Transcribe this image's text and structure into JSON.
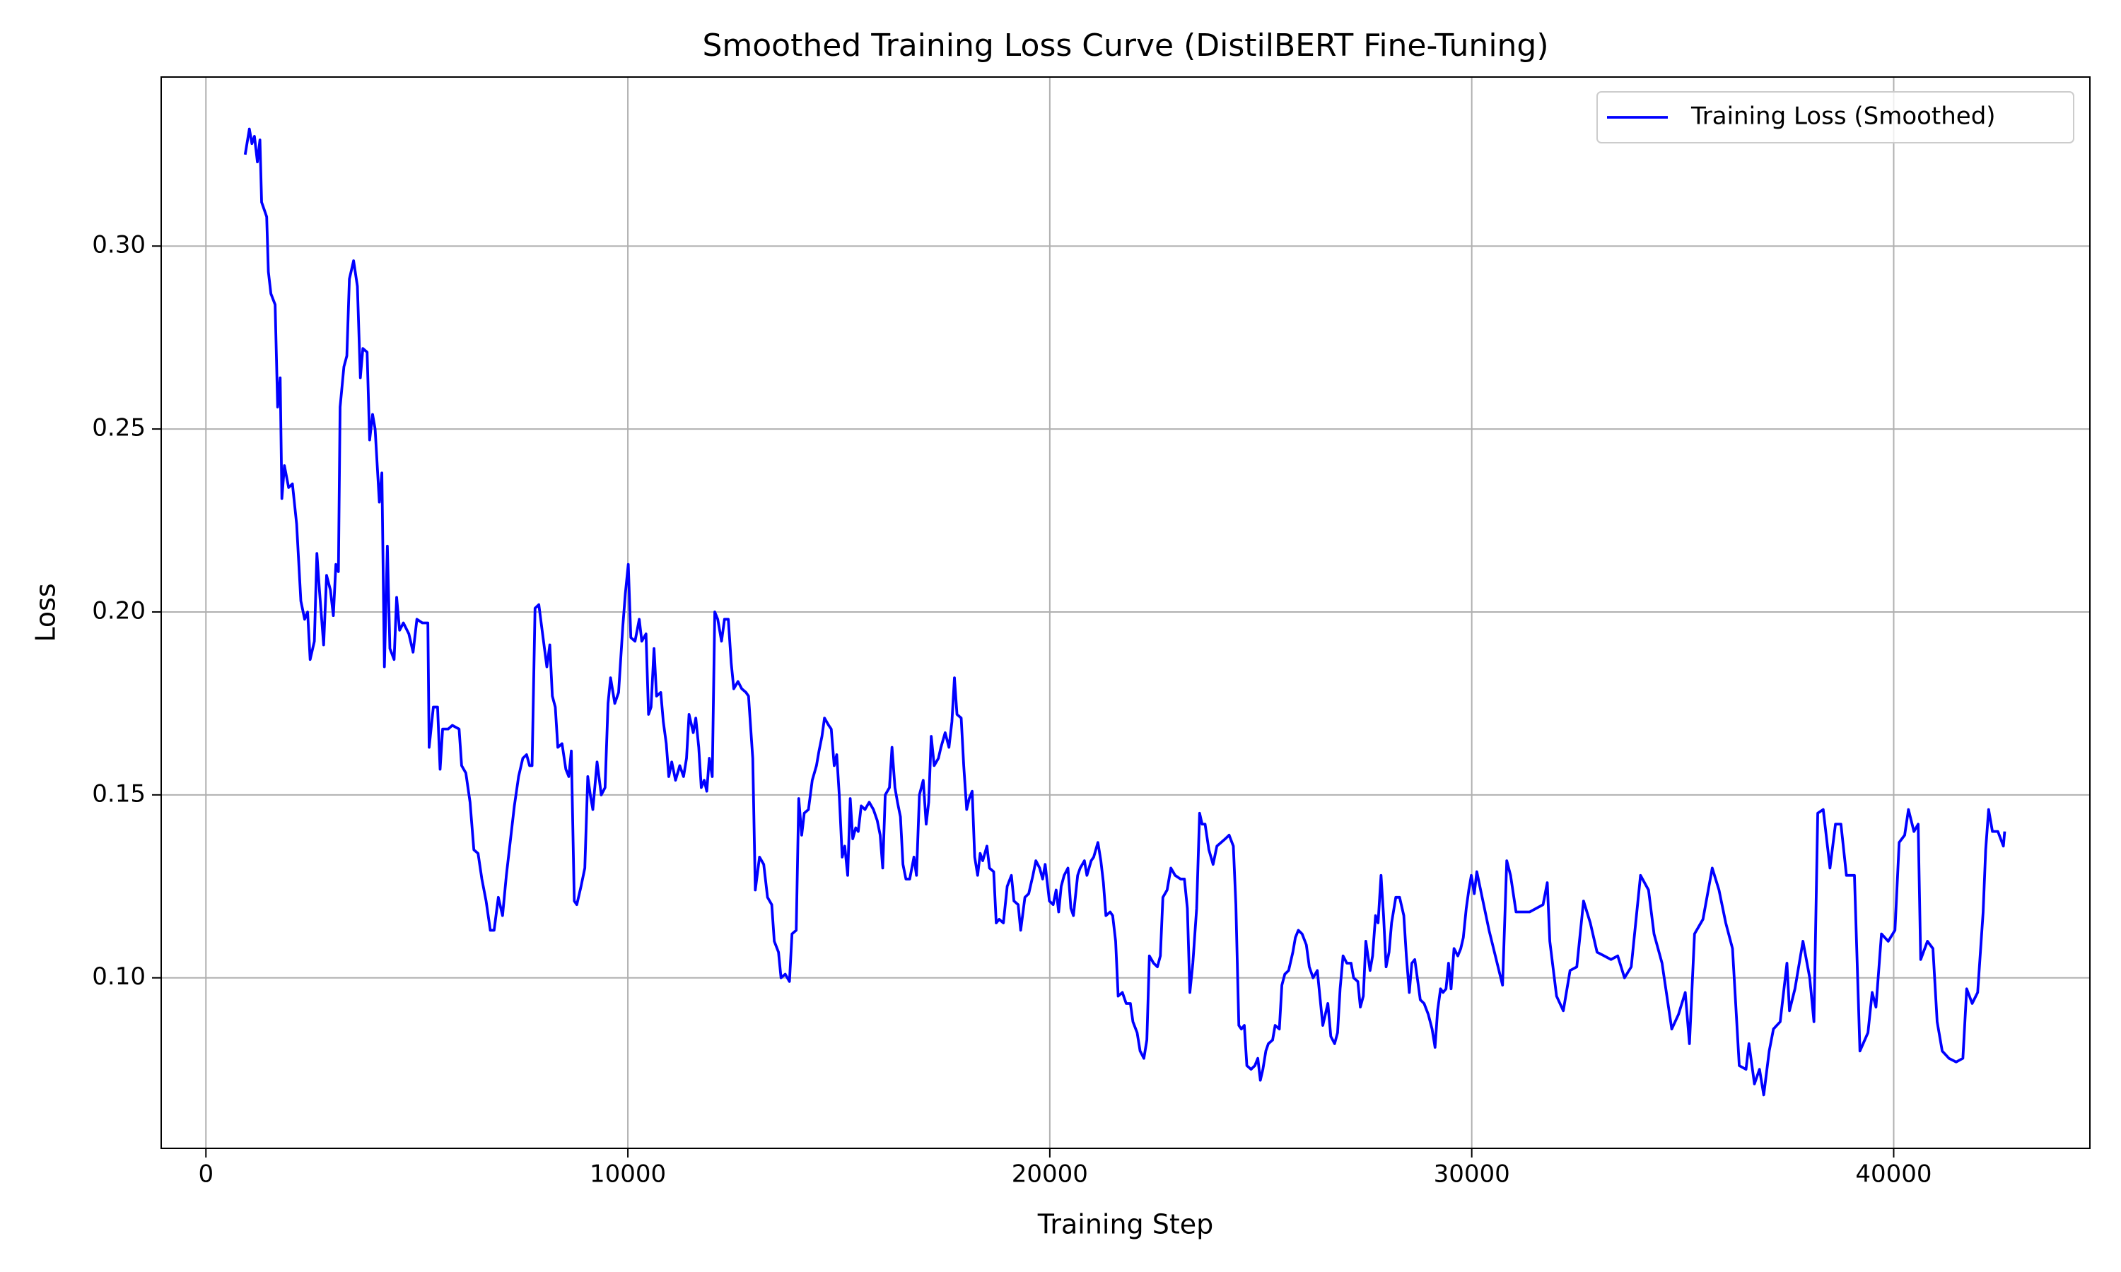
{
  "chart_data": {
    "type": "line",
    "title": "Smoothed Training Loss Curve (DistilBERT Fine-Tuning)",
    "x_label": "Training Step",
    "y_label": "Loss",
    "xlim": [
      -1060,
      44650
    ],
    "ylim": [
      0.0534,
      0.3462
    ],
    "xticks": [
      0,
      10000,
      20000,
      30000,
      40000
    ],
    "yticks": [
      {
        "value": 0.1,
        "label": "0.10"
      },
      0.15,
      {
        "value": 0.2,
        "label": "0.20"
      },
      0.25,
      {
        "value": 0.3,
        "label": "0.30"
      }
    ],
    "grid": true,
    "legend": "upper right",
    "x": [
      930,
      1030,
      1090,
      1150,
      1220,
      1280,
      1320,
      1380,
      1440,
      1480,
      1540,
      1640,
      1700,
      1760,
      1800,
      1860,
      1960,
      2050,
      2150,
      2250,
      2340,
      2410,
      2470,
      2570,
      2630,
      2690,
      2790,
      2860,
      2950,
      3020,
      3080,
      3140,
      3180,
      3270,
      3340,
      3400,
      3500,
      3590,
      3660,
      3720,
      3820,
      3880,
      3950,
      4010,
      4110,
      4170,
      4230,
      4300,
      4360,
      4460,
      4520,
      4590,
      4680,
      4810,
      4910,
      5000,
      5130,
      5260,
      5290,
      5390,
      5490,
      5550,
      5610,
      5740,
      5840,
      6000,
      6060,
      6160,
      6260,
      6350,
      6450,
      6540,
      6640,
      6740,
      6830,
      6930,
      7030,
      7120,
      7220,
      7310,
      7410,
      7510,
      7600,
      7670,
      7730,
      7800,
      7890,
      7990,
      8080,
      8150,
      8210,
      8280,
      8340,
      8440,
      8530,
      8600,
      8660,
      8730,
      8790,
      8890,
      8980,
      9050,
      9110,
      9170,
      9270,
      9370,
      9460,
      9530,
      9590,
      9690,
      9780,
      9880,
      9940,
      10010,
      10070,
      10170,
      10270,
      10330,
      10430,
      10490,
      10550,
      10620,
      10680,
      10780,
      10840,
      10910,
      10970,
      11040,
      11130,
      11230,
      11320,
      11390,
      11450,
      11550,
      11610,
      11680,
      11740,
      11810,
      11870,
      11930,
      12000,
      12060,
      12130,
      12220,
      12290,
      12380,
      12450,
      12510,
      12610,
      12700,
      12800,
      12860,
      12960,
      13020,
      13120,
      13220,
      13310,
      13410,
      13470,
      13570,
      13630,
      13730,
      13830,
      13890,
      13990,
      14050,
      14120,
      14180,
      14280,
      14370,
      14470,
      14530,
      14600,
      14660,
      14760,
      14820,
      14890,
      14950,
      15010,
      15080,
      15140,
      15210,
      15270,
      15330,
      15400,
      15460,
      15530,
      15620,
      15720,
      15820,
      15910,
      15980,
      16040,
      16100,
      16200,
      16260,
      16330,
      16390,
      16460,
      16520,
      16590,
      16680,
      16780,
      16840,
      16910,
      17000,
      17070,
      17130,
      17190,
      17260,
      17360,
      17420,
      17520,
      17610,
      17680,
      17740,
      17800,
      17900,
      17960,
      18030,
      18090,
      18160,
      18220,
      18290,
      18350,
      18410,
      18510,
      18570,
      18670,
      18730,
      18800,
      18900,
      18990,
      19090,
      19150,
      19250,
      19310,
      19410,
      19500,
      19600,
      19670,
      19760,
      19830,
      19890,
      19990,
      20080,
      20150,
      20210,
      20270,
      20340,
      20430,
      20500,
      20560,
      20660,
      20720,
      20820,
      20880,
      20980,
      21040,
      21140,
      21210,
      21270,
      21330,
      21430,
      21490,
      21560,
      21620,
      21720,
      21810,
      21910,
      21970,
      22070,
      22140,
      22230,
      22300,
      22360,
      22460,
      22550,
      22620,
      22680,
      22780,
      22870,
      22970,
      23100,
      23190,
      23260,
      23320,
      23390,
      23480,
      23550,
      23610,
      23680,
      23770,
      23870,
      23960,
      24060,
      24160,
      24250,
      24350,
      24410,
      24480,
      24540,
      24610,
      24670,
      24770,
      24860,
      24930,
      24990,
      25050,
      25120,
      25180,
      25280,
      25340,
      25440,
      25500,
      25570,
      25660,
      25760,
      25820,
      25890,
      25980,
      26080,
      26150,
      26240,
      26340,
      26400,
      26470,
      26530,
      26590,
      26660,
      26750,
      26820,
      26880,
      26950,
      27040,
      27140,
      27200,
      27300,
      27360,
      27430,
      27490,
      27590,
      27650,
      27720,
      27780,
      27850,
      27910,
      27970,
      28040,
      28100,
      28200,
      28290,
      28390,
      28450,
      28520,
      28580,
      28650,
      28710,
      28780,
      28870,
      28970,
      29060,
      29130,
      29190,
      29260,
      29320,
      29390,
      29450,
      29510,
      29580,
      29670,
      29740,
      29800,
      29870,
      29930,
      29990,
      30060,
      30120,
      30410,
      30730,
      30830,
      30920,
      31050,
      31370,
      31690,
      31790,
      31850,
      32010,
      32170,
      32330,
      32490,
      32650,
      32810,
      32970,
      33140,
      33300,
      33460,
      33620,
      33780,
      34000,
      34190,
      34320,
      34510,
      34740,
      34900,
      35060,
      35160,
      35280,
      35480,
      35700,
      35860,
      36020,
      36180,
      36340,
      36500,
      36570,
      36700,
      36820,
      36920,
      37050,
      37150,
      37310,
      37470,
      37530,
      37660,
      37850,
      38010,
      38110,
      38200,
      38330,
      38490,
      38620,
      38750,
      38880,
      39070,
      39200,
      39390,
      39490,
      39580,
      39710,
      39870,
      40030,
      40130,
      40260,
      40350,
      40480,
      40580,
      40640,
      40800,
      40930,
      41030,
      41150,
      41310,
      41480,
      41640,
      41730,
      41860,
      41990,
      42120,
      42180,
      42250,
      42340,
      42470,
      42600,
      42630
    ],
    "series": [
      {
        "name": "Training Loss (Smoothed)",
        "color": "#0000ff",
        "values": [
          0.325,
          0.332,
          0.328,
          0.33,
          0.323,
          0.329,
          0.312,
          0.31,
          0.308,
          0.293,
          0.287,
          0.284,
          0.256,
          0.264,
          0.231,
          0.24,
          0.234,
          0.235,
          0.224,
          0.203,
          0.198,
          0.2,
          0.187,
          0.192,
          0.216,
          0.206,
          0.191,
          0.21,
          0.206,
          0.199,
          0.213,
          0.211,
          0.256,
          0.267,
          0.27,
          0.291,
          0.296,
          0.289,
          0.264,
          0.272,
          0.271,
          0.247,
          0.254,
          0.25,
          0.23,
          0.238,
          0.185,
          0.218,
          0.19,
          0.187,
          0.204,
          0.195,
          0.197,
          0.194,
          0.189,
          0.198,
          0.197,
          0.197,
          0.163,
          0.174,
          0.174,
          0.157,
          0.168,
          0.168,
          0.169,
          0.168,
          0.158,
          0.156,
          0.148,
          0.135,
          0.134,
          0.127,
          0.121,
          0.113,
          0.113,
          0.122,
          0.117,
          0.128,
          0.138,
          0.147,
          0.155,
          0.16,
          0.161,
          0.158,
          0.158,
          0.201,
          0.202,
          0.193,
          0.185,
          0.191,
          0.177,
          0.174,
          0.163,
          0.164,
          0.157,
          0.155,
          0.162,
          0.121,
          0.12,
          0.125,
          0.13,
          0.155,
          0.15,
          0.146,
          0.159,
          0.15,
          0.152,
          0.175,
          0.182,
          0.175,
          0.178,
          0.196,
          0.205,
          0.213,
          0.193,
          0.192,
          0.198,
          0.192,
          0.194,
          0.172,
          0.174,
          0.19,
          0.177,
          0.178,
          0.17,
          0.164,
          0.155,
          0.159,
          0.154,
          0.158,
          0.155,
          0.16,
          0.172,
          0.167,
          0.171,
          0.163,
          0.152,
          0.154,
          0.151,
          0.16,
          0.155,
          0.2,
          0.198,
          0.192,
          0.198,
          0.198,
          0.186,
          0.179,
          0.181,
          0.179,
          0.178,
          0.177,
          0.16,
          0.124,
          0.133,
          0.131,
          0.122,
          0.12,
          0.11,
          0.107,
          0.1,
          0.101,
          0.099,
          0.112,
          0.113,
          0.149,
          0.139,
          0.145,
          0.146,
          0.154,
          0.158,
          0.162,
          0.166,
          0.171,
          0.169,
          0.168,
          0.158,
          0.161,
          0.15,
          0.133,
          0.136,
          0.128,
          0.149,
          0.138,
          0.141,
          0.14,
          0.147,
          0.146,
          0.148,
          0.146,
          0.143,
          0.139,
          0.13,
          0.15,
          0.152,
          0.163,
          0.152,
          0.148,
          0.144,
          0.131,
          0.127,
          0.127,
          0.133,
          0.128,
          0.15,
          0.154,
          0.142,
          0.148,
          0.166,
          0.158,
          0.16,
          0.163,
          0.167,
          0.163,
          0.17,
          0.182,
          0.172,
          0.171,
          0.158,
          0.146,
          0.149,
          0.151,
          0.133,
          0.128,
          0.134,
          0.132,
          0.136,
          0.13,
          0.129,
          0.115,
          0.116,
          0.115,
          0.125,
          0.128,
          0.121,
          0.12,
          0.113,
          0.122,
          0.123,
          0.128,
          0.132,
          0.13,
          0.127,
          0.131,
          0.121,
          0.12,
          0.124,
          0.118,
          0.125,
          0.128,
          0.13,
          0.119,
          0.117,
          0.128,
          0.13,
          0.132,
          0.128,
          0.132,
          0.133,
          0.137,
          0.132,
          0.126,
          0.117,
          0.118,
          0.117,
          0.11,
          0.095,
          0.096,
          0.093,
          0.093,
          0.088,
          0.085,
          0.08,
          0.078,
          0.083,
          0.106,
          0.104,
          0.103,
          0.106,
          0.122,
          0.124,
          0.13,
          0.128,
          0.127,
          0.127,
          0.119,
          0.096,
          0.104,
          0.119,
          0.145,
          0.142,
          0.142,
          0.135,
          0.131,
          0.136,
          0.137,
          0.138,
          0.139,
          0.136,
          0.12,
          0.087,
          0.086,
          0.087,
          0.076,
          0.075,
          0.076,
          0.078,
          0.072,
          0.075,
          0.08,
          0.082,
          0.083,
          0.087,
          0.086,
          0.098,
          0.101,
          0.102,
          0.107,
          0.111,
          0.113,
          0.112,
          0.109,
          0.103,
          0.1,
          0.102,
          0.095,
          0.087,
          0.09,
          0.093,
          0.084,
          0.082,
          0.085,
          0.097,
          0.106,
          0.104,
          0.104,
          0.1,
          0.099,
          0.092,
          0.095,
          0.11,
          0.102,
          0.106,
          0.117,
          0.115,
          0.128,
          0.117,
          0.103,
          0.107,
          0.115,
          0.122,
          0.122,
          0.117,
          0.106,
          0.096,
          0.104,
          0.105,
          0.1,
          0.094,
          0.093,
          0.09,
          0.086,
          0.081,
          0.091,
          0.097,
          0.096,
          0.097,
          0.104,
          0.097,
          0.108,
          0.106,
          0.108,
          0.111,
          0.119,
          0.124,
          0.128,
          0.123,
          0.129,
          0.113,
          0.098,
          0.132,
          0.128,
          0.118,
          0.118,
          0.12,
          0.126,
          0.11,
          0.095,
          0.091,
          0.102,
          0.103,
          0.121,
          0.115,
          0.107,
          0.106,
          0.105,
          0.106,
          0.1,
          0.103,
          0.128,
          0.124,
          0.112,
          0.104,
          0.086,
          0.09,
          0.096,
          0.082,
          0.112,
          0.116,
          0.13,
          0.124,
          0.115,
          0.108,
          0.076,
          0.075,
          0.082,
          0.071,
          0.075,
          0.068,
          0.08,
          0.086,
          0.088,
          0.104,
          0.091,
          0.097,
          0.11,
          0.1,
          0.088,
          0.145,
          0.146,
          0.13,
          0.142,
          0.142,
          0.128,
          0.128,
          0.08,
          0.085,
          0.096,
          0.092,
          0.112,
          0.11,
          0.113,
          0.137,
          0.139,
          0.146,
          0.14,
          0.142,
          0.105,
          0.11,
          0.108,
          0.088,
          0.08,
          0.078,
          0.077,
          0.078,
          0.097,
          0.093,
          0.096,
          0.118,
          0.135,
          0.146,
          0.14,
          0.14,
          0.136,
          0.14
        ]
      }
    ]
  }
}
